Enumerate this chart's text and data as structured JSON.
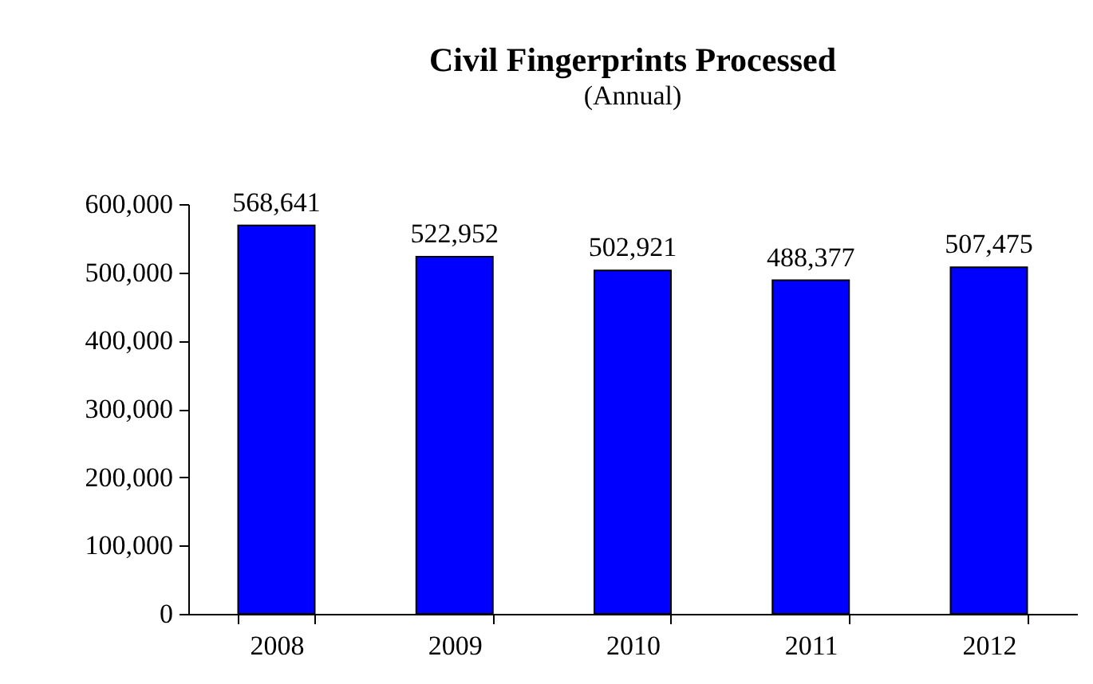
{
  "chart_data": {
    "type": "bar",
    "title": "Civil Fingerprints Processed",
    "subtitle": "(Annual)",
    "categories": [
      "2008",
      "2009",
      "2010",
      "2011",
      "2012"
    ],
    "values": [
      568641,
      522952,
      502921,
      488377,
      507475
    ],
    "color": "#0000ff",
    "value_labels": [
      "568,641",
      "522,952",
      "502,921",
      "488,377",
      "507,475"
    ],
    "ylim": [
      0,
      600000
    ],
    "yticks": [
      0,
      {
        "value": 100000,
        "label": "100,000"
      },
      {
        "value": 200000,
        "label": "200,000"
      },
      {
        "value": 300000,
        "label": "300,000"
      },
      {
        "value": 400000,
        "label": "400,000"
      },
      {
        "value": 500000,
        "label": "500,000"
      },
      {
        "value": 600000,
        "label": "600,000"
      }
    ],
    "grid": false
  }
}
